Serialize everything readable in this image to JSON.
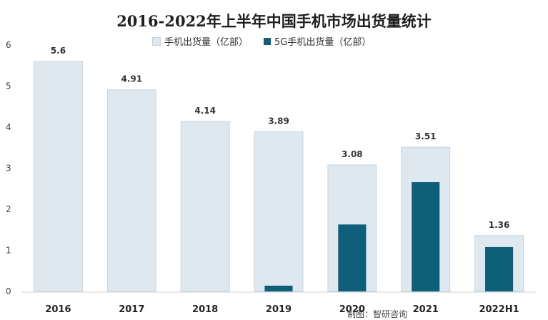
{
  "chart_data": {
    "type": "bar",
    "title": "2016-2022年上半年中国手机市场出货量统计",
    "categories": [
      "2016",
      "2017",
      "2018",
      "2019",
      "2020",
      "2021",
      "2022H1"
    ],
    "series": [
      {
        "name": "手机出货量（亿部）",
        "values": [
          5.6,
          4.91,
          4.14,
          3.89,
          3.08,
          3.51,
          1.36
        ],
        "color": "#dfe8ef",
        "border": "#c5d4df"
      },
      {
        "name": "5G手机出货量（亿部）",
        "values": [
          null,
          null,
          null,
          0.14,
          1.63,
          2.66,
          1.08
        ],
        "color": "#0d5f7a"
      }
    ],
    "data_labels": [
      "5.6",
      "4.91",
      "4.14",
      "3.89",
      "3.08",
      "3.51",
      "1.36"
    ],
    "y_ticks": [
      "0",
      "1",
      "2",
      "3",
      "4",
      "5",
      "6"
    ],
    "ylim": [
      0,
      6
    ],
    "legend_position": "top",
    "grid": false,
    "xlabel": "",
    "ylabel": ""
  },
  "source_text": "制图：智研咨询"
}
